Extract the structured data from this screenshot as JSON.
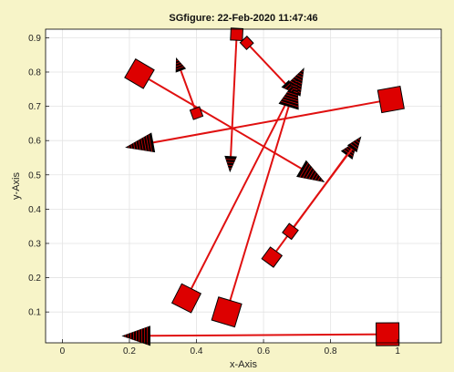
{
  "chart_data": {
    "type": "quiver",
    "title": "SGfigure: 22-Feb-2020 11:47:46",
    "xlabel": "x-Axis",
    "ylabel": "y-Axis",
    "xlim": [
      -0.05,
      1.13
    ],
    "ylim": [
      0.01,
      0.925
    ],
    "xticks": [
      0,
      0.2,
      0.4,
      0.6,
      0.8,
      1
    ],
    "xtick_labels": [
      "0",
      "0.2",
      "0.4",
      "0.6",
      "0.8",
      "1"
    ],
    "yticks": [
      0.1,
      0.2,
      0.3,
      0.4,
      0.5,
      0.6,
      0.7,
      0.8,
      0.9
    ],
    "ytick_labels": [
      "0.1",
      "0.2",
      "0.3",
      "0.4",
      "0.5",
      "0.6",
      "0.7",
      "0.8",
      "0.9"
    ],
    "grid": true,
    "colors": {
      "figure_bg": "#f7f4c8",
      "axes_bg": "#ffffff",
      "grid": "#e3e3e3",
      "line": "#e01010",
      "marker": "#dd0000",
      "head": "#000000"
    },
    "arrows": [
      {
        "x0": 0.23,
        "y0": 0.795,
        "x1": 0.78,
        "y1": 0.48,
        "tail": 1.4
      },
      {
        "x0": 0.98,
        "y0": 0.72,
        "x1": 0.19,
        "y1": 0.58,
        "tail": 1.5
      },
      {
        "x0": 0.37,
        "y0": 0.14,
        "x1": 0.72,
        "y1": 0.81,
        "tail": 1.4
      },
      {
        "x0": 0.49,
        "y0": 0.1,
        "x1": 0.7,
        "y1": 0.78,
        "tail": 1.6
      },
      {
        "x0": 0.52,
        "y0": 0.91,
        "x1": 0.5,
        "y1": 0.51,
        "tail": 0.65
      },
      {
        "x0": 0.4,
        "y0": 0.68,
        "x1": 0.34,
        "y1": 0.84,
        "tail": 0.5
      },
      {
        "x0": 0.55,
        "y0": 0.885,
        "x1": 0.69,
        "y1": 0.74,
        "tail": 0.45
      },
      {
        "x0": 0.625,
        "y0": 0.26,
        "x1": 0.88,
        "y1": 0.6,
        "tail": 0.85
      },
      {
        "x0": 0.68,
        "y0": 0.335,
        "x1": 0.89,
        "y1": 0.61,
        "tail": 0.6
      },
      {
        "x0": 0.97,
        "y0": 0.035,
        "x1": 0.18,
        "y1": 0.03,
        "tail": 1.5
      }
    ]
  }
}
